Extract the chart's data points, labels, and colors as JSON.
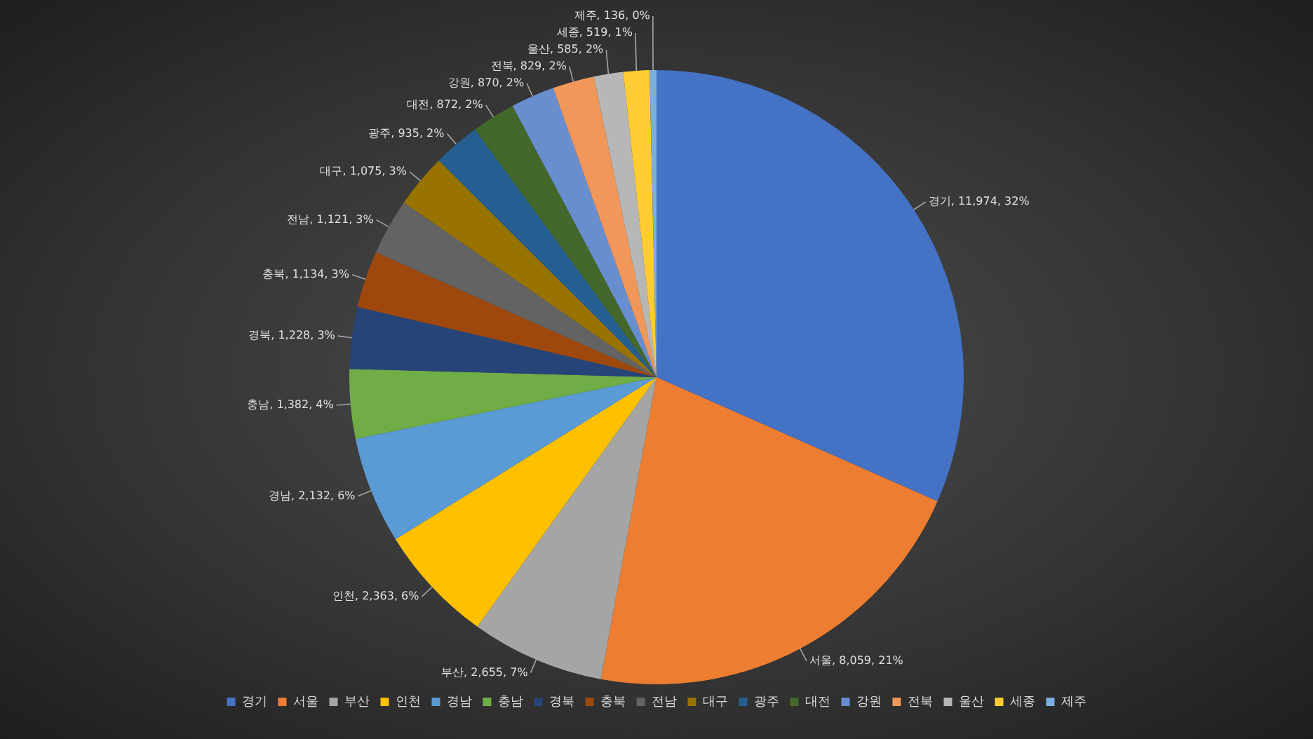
{
  "chart_data": {
    "type": "pie",
    "categories": [
      "경기",
      "서울",
      "부산",
      "인천",
      "경남",
      "충남",
      "경북",
      "충북",
      "전남",
      "대구",
      "광주",
      "대전",
      "강원",
      "전북",
      "울산",
      "세종",
      "제주"
    ],
    "values": [
      11974,
      8059,
      2655,
      2363,
      2132,
      1382,
      1228,
      1134,
      1121,
      1075,
      935,
      872,
      870,
      829,
      585,
      519,
      136
    ],
    "colors": [
      "#4472c4",
      "#ed7d31",
      "#a5a5a5",
      "#ffc000",
      "#5b9bd5",
      "#70ad47",
      "#264478",
      "#9e480e",
      "#636363",
      "#997300",
      "#255e91",
      "#43682b",
      "#698ed0",
      "#f1975a",
      "#b7b7b7",
      "#ffcd33",
      "#7cafdd"
    ],
    "value_labels": [
      "경기, 11,974, 32%",
      "서울, 8,059, 21%",
      "부산, 2,655, 7%",
      "인천, 2,363, 6%",
      "경남, 2,132, 6%",
      "충남, 1,382, 4%",
      "경북, 1,228, 3%",
      "충북, 1,134, 3%",
      "전남, 1,121, 3%",
      "대구, 1,075, 3%",
      "광주, 935, 2%",
      "대전, 872, 2%",
      "강원, 870, 2%",
      "전북, 829, 2%",
      "울산, 585, 2%",
      "세종, 519, 1%",
      "제주, 136, 0%"
    ],
    "legend": "bottom"
  }
}
